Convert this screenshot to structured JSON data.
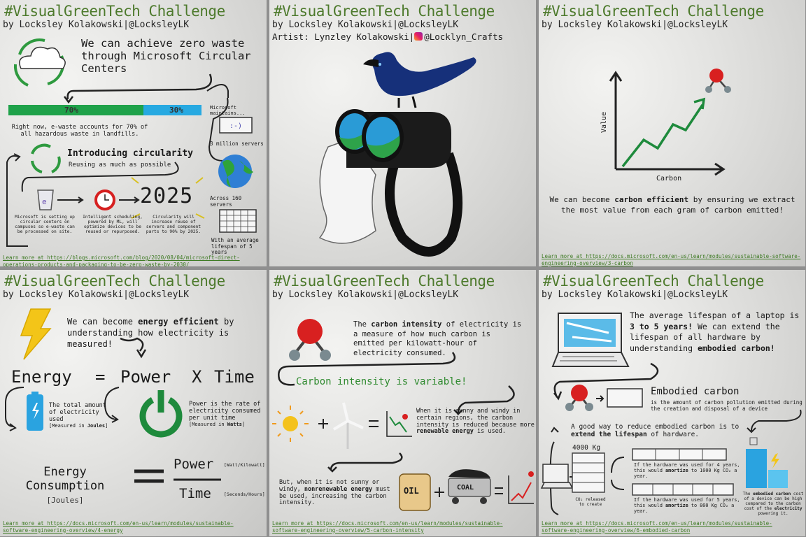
{
  "header": {
    "title": "#VisualGreenTech Challenge",
    "byline": "by Locksley Kolakowski|@LocksleyLK"
  },
  "p1": {
    "headline": "We can achieve zero waste through Microsoft Circular Centers",
    "bar_left": "70%",
    "bar_right": "30%",
    "ewaste_pct": 0.7,
    "ewaste_text": "Right now, e-waste accounts for 70% of all hazardous waste in landfills.",
    "intro_title": "Introducing circularity",
    "intro_sub": "Reusing as much as possible",
    "maintains": "Microsoft maintains...",
    "servers": "3 million servers",
    "regions": "Across 160 servers",
    "lifespan": "With an average lifespan of 5 years",
    "year": "2025",
    "c1": "Microsoft is setting up circular centers on campuses so e-waste can be processed on site.",
    "c2": "Intelligent scheduling, powered by ML, will optimize devices to be reused or repurposed.",
    "c3": "Circularity will increase reuse of servers and component parts to 90% by 2025.",
    "learn": "Learn more at https://blogs.microsoft.com/blog/2020/08/04/microsoft-direct-operations-products-and-packaging-to-be-zero-waste-by-2030/"
  },
  "p2": {
    "artist": "Artist: Lynzley Kolakowski|",
    "handle": "@Locklyn_Crafts"
  },
  "p3": {
    "ylabel": "Value",
    "xlabel": "Carbon",
    "caption_a": "We can become ",
    "caption_b": "carbon efficient",
    "caption_c": " by ensuring we extract the most value from each gram of carbon emitted!",
    "learn": "Learn more at https://docs.microsoft.com/en-us/learn/modules/sustainable-software-engineering-overview/3-carbon"
  },
  "p4": {
    "intro_a": "We can become ",
    "intro_b": "energy efficient",
    "intro_c": " by understanding how electricity is measured!",
    "eq_energy": "Energy",
    "eq_eq": "=",
    "eq_power": "Power",
    "eq_x": "X",
    "eq_time": "Time",
    "energy_desc": "The total amount of electricity used",
    "energy_unit_a": "[Measured in ",
    "energy_unit_b": "Joules",
    "energy_unit_c": "]",
    "power_desc": "Power is the rate of electricity consumed per unit time",
    "power_unit_a": "[Measured in ",
    "power_unit_b": "Watts",
    "power_unit_c": "]",
    "ec_1": "Energy",
    "ec_2": "Consumption",
    "ec_3": "[Joules]",
    "frac_num": "Power",
    "frac_den": "Time",
    "num_unit": "[Watt/Kilowatt]",
    "den_unit": "[Seconds/Hours]",
    "learn": "Learn more at https://docs.microsoft.com/en-us/learn/modules/sustainable-software-engineering-overview/4-energy"
  },
  "p5": {
    "def_a": "The ",
    "def_b": "carbon intensity",
    "def_c": " of electricity is a measure of how much carbon is emitted per kilowatt-hour of electricity consumed.",
    "variable": "Carbon intensity is variable!",
    "sunny_a": "When it is sunny and windy in certain regions, the carbon intensity is reduced because more ",
    "sunny_b": "renewable energy",
    "sunny_c": " is used.",
    "notsunny_a": "But, when it is not sunny or windy, ",
    "notsunny_b": "nonrenewable energy",
    "notsunny_c": " must be used, increasing the carbon intensity.",
    "oil": "OIL",
    "coal": "COAL",
    "learn": "Learn more at https://docs.microsoft.com/en-us/learn/modules/sustainable-software-engineering-overview/5-carbon-intensity"
  },
  "p6": {
    "intro_a": "The average lifespan of a laptop is ",
    "intro_b": "3 to 5 years!",
    "intro_c": " We can extend the lifespan of all hardware by understanding ",
    "intro_d": "embodied carbon!",
    "emb_title": "Embodied carbon",
    "emb_def": "is the amount of carbon pollution emitted during the creation and disposal of a device",
    "reduce_a": "A good way to reduce embodied carbon is to ",
    "reduce_b": "extend the lifespan",
    "reduce_c": " of hardware.",
    "kg": "4000 Kg",
    "released": "CO₂ released to create",
    "y4_a": "If the hardware was used for 4 years, this would ",
    "y4_b": "amortize",
    "y4_c": " to 1000 Kg CO₂ a year.",
    "y5_a": "If the hardware was used for 5 years, this would ",
    "y5_b": "amortize",
    "y5_c": " to 800 Kg CO₂ a year.",
    "cost_a": "The ",
    "cost_b": "embodied carbon",
    "cost_c": " cost of a device can be high compared to the carbon cost of the ",
    "cost_d": "electricity",
    "cost_e": " powering it.",
    "learn": "Learn more at https://docs.microsoft.com/en-us/learn/modules/sustainable-software-engineering-overview/6-embodied-carbon"
  }
}
